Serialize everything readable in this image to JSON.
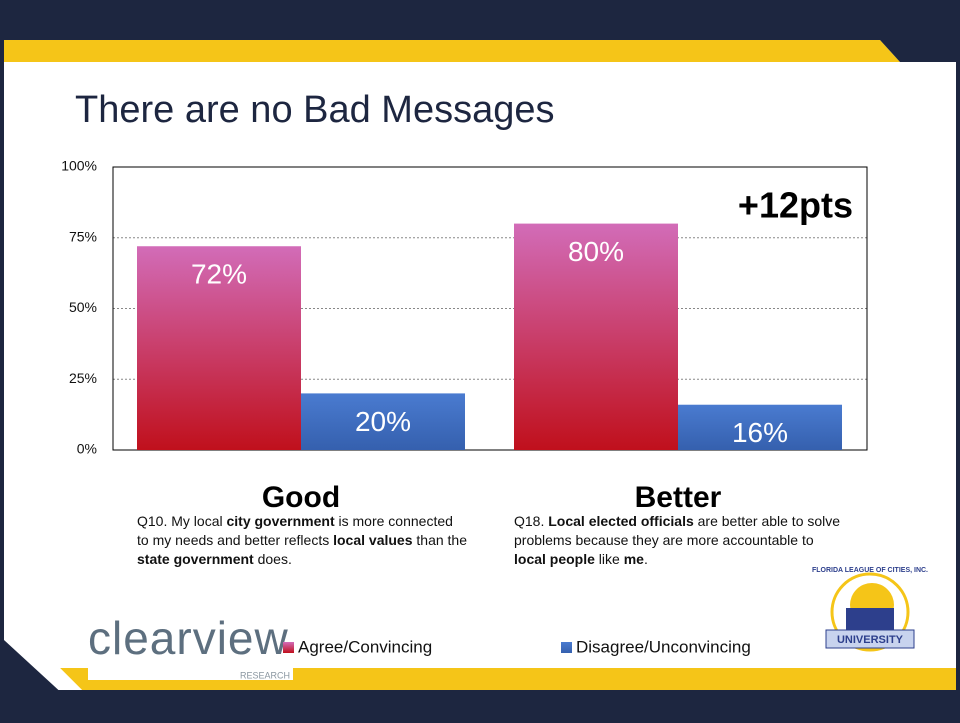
{
  "chart_data": {
    "type": "bar",
    "title": "There are no Bad Messages",
    "annotation": "+12pts",
    "categories": [
      "Good",
      "Better"
    ],
    "series": [
      {
        "name": "Agree/Convincing",
        "color": "#c8325a",
        "gradient": [
          "#d26cb8",
          "#c0101c"
        ],
        "values": [
          72,
          80
        ],
        "value_labels": [
          "72%",
          "80%"
        ]
      },
      {
        "name": "Disagree/Unconvincing",
        "color": "#4472c4",
        "gradient": [
          "#4a7bd0",
          "#3560ae"
        ],
        "values": [
          20,
          16
        ],
        "value_labels": [
          "20%",
          "16%"
        ]
      }
    ],
    "ylim": [
      0,
      100
    ],
    "yticks": [
      {
        "value": 0,
        "label": "0%"
      },
      {
        "value": 25,
        "label": "25%"
      },
      {
        "value": 50,
        "label": "50%"
      },
      {
        "value": 75,
        "label": "75%"
      },
      {
        "value": 100,
        "label": "100%"
      }
    ],
    "grid": true,
    "descriptions": [
      [
        {
          "text": "Q10. My local ",
          "bold": false
        },
        {
          "text": "city government",
          "bold": true
        },
        {
          "text": " is more connected to my needs and better reflects ",
          "bold": false
        },
        {
          "text": "local values",
          "bold": true
        },
        {
          "text": " than the ",
          "bold": false
        },
        {
          "text": "state government",
          "bold": true
        },
        {
          "text": " does.",
          "bold": false
        }
      ],
      [
        {
          "text": "Q18. ",
          "bold": false
        },
        {
          "text": "Local elected officials",
          "bold": true
        },
        {
          "text": " are better able to solve problems because they are more accountable to ",
          "bold": false
        },
        {
          "text": "local people",
          "bold": true
        },
        {
          "text": " like ",
          "bold": false
        },
        {
          "text": "me",
          "bold": true
        },
        {
          "text": ".",
          "bold": false
        }
      ]
    ]
  },
  "logos": {
    "left": {
      "name": "clearview",
      "sub": "RESEARCH"
    },
    "right": {
      "ring": "FLORIDA LEAGUE OF CITIES, INC.",
      "banner": "UNIVERSITY"
    }
  }
}
